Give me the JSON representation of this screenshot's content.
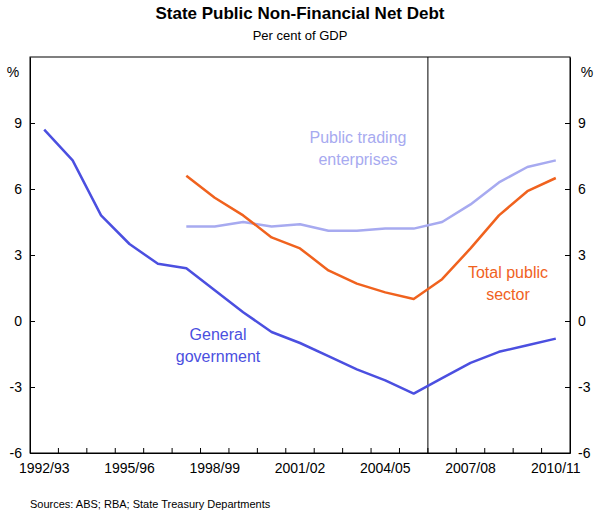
{
  "chart_data": {
    "type": "line",
    "title": "State Public Non-Financial Net Debt",
    "subtitle": "Per cent of GDP",
    "y_label": "%",
    "source": "Sources: ABS; RBA; State Treasury Departments",
    "categories": [
      "1992/93",
      null,
      null,
      "1995/96",
      null,
      null,
      "1998/99",
      null,
      null,
      "2001/02",
      null,
      null,
      "2004/05",
      null,
      null,
      "2007/08",
      null,
      null,
      "2010/11"
    ],
    "series": [
      {
        "name": "Public trading enterprises",
        "color": "#a7aaf0",
        "values": [
          null,
          null,
          null,
          null,
          null,
          4.3,
          4.3,
          4.5,
          4.3,
          4.4,
          4.1,
          4.1,
          4.2,
          4.2,
          4.5,
          5.3,
          6.3,
          7.0,
          7.3
        ]
      },
      {
        "name": "Total public sector",
        "color": "#f0621e",
        "values": [
          null,
          null,
          null,
          null,
          null,
          6.6,
          5.6,
          4.8,
          3.8,
          3.3,
          2.3,
          1.7,
          1.3,
          1.0,
          1.9,
          3.3,
          4.8,
          5.9,
          6.5
        ]
      },
      {
        "name": "General government",
        "color": "#4b4fe0",
        "values": [
          8.7,
          7.3,
          4.8,
          3.5,
          2.6,
          2.4,
          1.4,
          0.4,
          -0.5,
          -1.0,
          -1.6,
          -2.2,
          -2.7,
          -3.3,
          -2.6,
          -1.9,
          -1.4,
          -1.1,
          -0.8
        ]
      }
    ],
    "ylim": [
      -6,
      12
    ],
    "yticks": [
      -6,
      -3,
      0,
      3,
      6,
      9
    ],
    "grid": false
  }
}
